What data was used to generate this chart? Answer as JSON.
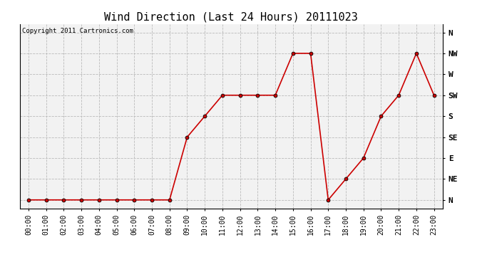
{
  "title": "Wind Direction (Last 24 Hours) 20111023",
  "copyright_text": "Copyright 2011 Cartronics.com",
  "x_labels": [
    "00:00",
    "01:00",
    "02:00",
    "03:00",
    "04:00",
    "05:00",
    "06:00",
    "07:00",
    "08:00",
    "09:00",
    "10:00",
    "11:00",
    "12:00",
    "13:00",
    "14:00",
    "15:00",
    "16:00",
    "17:00",
    "18:00",
    "19:00",
    "20:00",
    "21:00",
    "22:00",
    "23:00"
  ],
  "y_ticks": [
    0,
    45,
    90,
    135,
    180,
    225,
    270,
    315,
    360
  ],
  "y_labels": [
    "N",
    "NE",
    "E",
    "SE",
    "S",
    "SW",
    "W",
    "NW",
    "N"
  ],
  "data_x": [
    0,
    1,
    2,
    3,
    4,
    5,
    6,
    7,
    8,
    9,
    10,
    11,
    12,
    13,
    14,
    15,
    16,
    17,
    18,
    19,
    20,
    21,
    22,
    23
  ],
  "data_y": [
    0,
    0,
    0,
    0,
    0,
    0,
    0,
    0,
    0,
    135,
    180,
    225,
    225,
    225,
    225,
    315,
    315,
    0,
    45,
    90,
    180,
    225,
    315,
    225
  ],
  "line_color": "#cc0000",
  "marker_size": 3.5,
  "marker_face_color": "#cc0000",
  "marker_edge_color": "#000000",
  "background_color": "#f2f2f2",
  "grid_color": "#bbbbbb",
  "title_fontsize": 11,
  "tick_fontsize": 7,
  "ylabel_fontsize": 8,
  "copyright_fontsize": 6.5,
  "ylim": [
    -18,
    378
  ],
  "xlim": [
    -0.5,
    23.5
  ],
  "fig_width": 6.9,
  "fig_height": 3.75,
  "dpi": 100
}
